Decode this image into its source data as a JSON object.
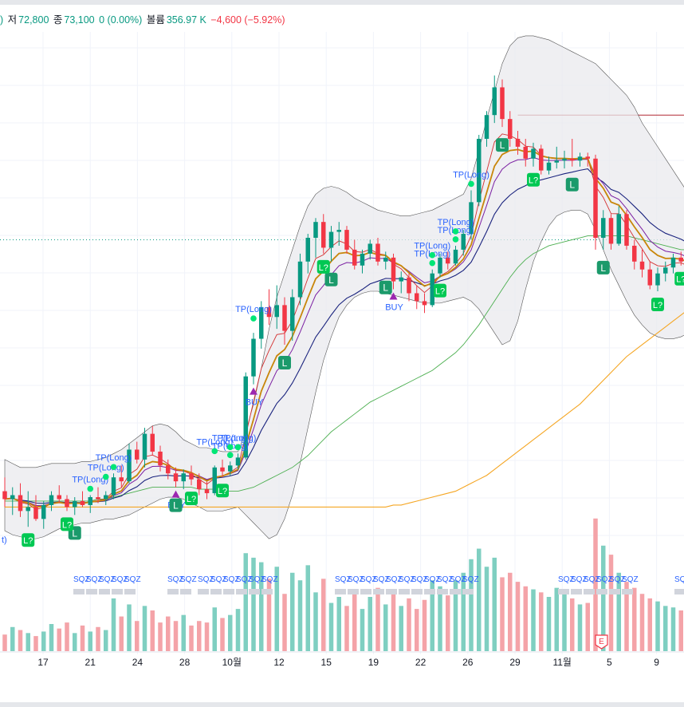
{
  "legend": {
    "low_label": "저",
    "low_value": "72,800",
    "close_label": "종",
    "close_value": "73,100",
    "change_value": "0 (0.00%)",
    "volume_label": "볼륨",
    "volume_value": "356.97 K",
    "day_change": "−4,600 (−5.92%)"
  },
  "colors": {
    "up": "#089981",
    "down": "#f23645",
    "up_volume": "#7fcfc1",
    "down_volume": "#f4a3a8",
    "signal_green": "#00e676",
    "signal_blue": "#2962ff",
    "buy_marker": "#9c27b0",
    "band_fill": "#e9eaed"
  },
  "chart_data": {
    "type": "candlestick",
    "x_tick_labels": [
      "17",
      "21",
      "24",
      "28",
      "10월",
      "12",
      "15",
      "19",
      "22",
      "26",
      "29",
      "11월",
      "5",
      "9"
    ],
    "candles": [
      {
        "o": 73700,
        "h": 74050,
        "l": 73300,
        "c": 73500
      },
      {
        "o": 73500,
        "h": 73800,
        "l": 73100,
        "c": 73600
      },
      {
        "o": 73600,
        "h": 73900,
        "l": 73050,
        "c": 73200
      },
      {
        "o": 73200,
        "h": 73700,
        "l": 72800,
        "c": 73300
      },
      {
        "o": 73300,
        "h": 73600,
        "l": 72950,
        "c": 73000
      },
      {
        "o": 73000,
        "h": 73450,
        "l": 72750,
        "c": 73350
      },
      {
        "o": 73350,
        "h": 73700,
        "l": 73200,
        "c": 73600
      },
      {
        "o": 73600,
        "h": 73850,
        "l": 73400,
        "c": 73500
      },
      {
        "o": 73500,
        "h": 73600,
        "l": 73200,
        "c": 73300
      },
      {
        "o": 73300,
        "h": 73550,
        "l": 73100,
        "c": 73450
      },
      {
        "o": 73450,
        "h": 73700,
        "l": 73300,
        "c": 73350
      },
      {
        "o": 73350,
        "h": 73600,
        "l": 73150,
        "c": 73550
      },
      {
        "o": 73550,
        "h": 73800,
        "l": 73400,
        "c": 73500
      },
      {
        "o": 73500,
        "h": 73700,
        "l": 73350,
        "c": 73600
      },
      {
        "o": 73600,
        "h": 74150,
        "l": 73500,
        "c": 74050
      },
      {
        "o": 74050,
        "h": 74350,
        "l": 73800,
        "c": 73950
      },
      {
        "o": 73950,
        "h": 74900,
        "l": 73900,
        "c": 74750
      },
      {
        "o": 74750,
        "h": 74950,
        "l": 74400,
        "c": 74500
      },
      {
        "o": 74500,
        "h": 75300,
        "l": 74300,
        "c": 75150
      },
      {
        "o": 75150,
        "h": 75350,
        "l": 74600,
        "c": 74700
      },
      {
        "o": 74700,
        "h": 74850,
        "l": 74200,
        "c": 74350
      },
      {
        "o": 74350,
        "h": 74500,
        "l": 74000,
        "c": 74150
      },
      {
        "o": 74150,
        "h": 74300,
        "l": 73800,
        "c": 73950
      },
      {
        "o": 73950,
        "h": 74250,
        "l": 73750,
        "c": 74150
      },
      {
        "o": 74150,
        "h": 74350,
        "l": 73850,
        "c": 74000
      },
      {
        "o": 74000,
        "h": 74150,
        "l": 73600,
        "c": 73750
      },
      {
        "o": 73750,
        "h": 73950,
        "l": 73500,
        "c": 73650
      },
      {
        "o": 73650,
        "h": 74350,
        "l": 73600,
        "c": 74300
      },
      {
        "o": 74300,
        "h": 74500,
        "l": 74050,
        "c": 74200
      },
      {
        "o": 74200,
        "h": 74450,
        "l": 74100,
        "c": 74350
      },
      {
        "o": 74350,
        "h": 74650,
        "l": 74250,
        "c": 74550
      },
      {
        "o": 74550,
        "h": 76700,
        "l": 74500,
        "c": 76600
      },
      {
        "o": 76600,
        "h": 77700,
        "l": 76400,
        "c": 77550
      },
      {
        "o": 77550,
        "h": 78500,
        "l": 77300,
        "c": 78350
      },
      {
        "o": 78350,
        "h": 78800,
        "l": 77900,
        "c": 78100
      },
      {
        "o": 78100,
        "h": 78900,
        "l": 77800,
        "c": 78400
      },
      {
        "o": 78400,
        "h": 78600,
        "l": 77400,
        "c": 77750
      },
      {
        "o": 77750,
        "h": 78800,
        "l": 77500,
        "c": 78600
      },
      {
        "o": 78600,
        "h": 79700,
        "l": 78400,
        "c": 79500
      },
      {
        "o": 79500,
        "h": 80200,
        "l": 79200,
        "c": 80100
      },
      {
        "o": 80100,
        "h": 80600,
        "l": 79600,
        "c": 80500
      },
      {
        "o": 80500,
        "h": 80700,
        "l": 79700,
        "c": 79850
      },
      {
        "o": 79850,
        "h": 80400,
        "l": 79500,
        "c": 80250
      },
      {
        "o": 80250,
        "h": 80500,
        "l": 79900,
        "c": 80300
      },
      {
        "o": 80300,
        "h": 80400,
        "l": 79700,
        "c": 79800
      },
      {
        "o": 79800,
        "h": 80050,
        "l": 79300,
        "c": 79400
      },
      {
        "o": 79400,
        "h": 79800,
        "l": 79200,
        "c": 79700
      },
      {
        "o": 79700,
        "h": 80050,
        "l": 79550,
        "c": 79950
      },
      {
        "o": 79950,
        "h": 80100,
        "l": 79400,
        "c": 79500
      },
      {
        "o": 79500,
        "h": 79750,
        "l": 79300,
        "c": 79600
      },
      {
        "o": 79600,
        "h": 79700,
        "l": 78800,
        "c": 79000
      },
      {
        "o": 79000,
        "h": 79250,
        "l": 78700,
        "c": 79100
      },
      {
        "o": 79100,
        "h": 79200,
        "l": 78500,
        "c": 78700
      },
      {
        "o": 78700,
        "h": 78900,
        "l": 78300,
        "c": 78500
      },
      {
        "o": 78500,
        "h": 78700,
        "l": 78200,
        "c": 78400
      },
      {
        "o": 78400,
        "h": 79300,
        "l": 78350,
        "c": 79200
      },
      {
        "o": 79200,
        "h": 79700,
        "l": 79100,
        "c": 79600
      },
      {
        "o": 79600,
        "h": 79750,
        "l": 79300,
        "c": 79450
      },
      {
        "o": 79450,
        "h": 79900,
        "l": 79400,
        "c": 79800
      },
      {
        "o": 79800,
        "h": 80300,
        "l": 79650,
        "c": 80200
      },
      {
        "o": 80200,
        "h": 81300,
        "l": 80050,
        "c": 81000
      },
      {
        "o": 81000,
        "h": 82700,
        "l": 80900,
        "c": 82600
      },
      {
        "o": 82600,
        "h": 83300,
        "l": 82400,
        "c": 83200
      },
      {
        "o": 83200,
        "h": 84200,
        "l": 83000,
        "c": 83900
      },
      {
        "o": 83900,
        "h": 84100,
        "l": 82900,
        "c": 83100
      },
      {
        "o": 83100,
        "h": 83300,
        "l": 82400,
        "c": 82600
      },
      {
        "o": 82600,
        "h": 82800,
        "l": 82200,
        "c": 82400
      },
      {
        "o": 82400,
        "h": 82600,
        "l": 81900,
        "c": 82100
      },
      {
        "o": 82100,
        "h": 82500,
        "l": 81900,
        "c": 82350
      },
      {
        "o": 82350,
        "h": 82450,
        "l": 81700,
        "c": 81800
      },
      {
        "o": 81800,
        "h": 82150,
        "l": 81700,
        "c": 82000
      },
      {
        "o": 82000,
        "h": 82400,
        "l": 81850,
        "c": 82050
      },
      {
        "o": 82050,
        "h": 82300,
        "l": 81850,
        "c": 82100
      },
      {
        "o": 82100,
        "h": 82600,
        "l": 81900,
        "c": 82050
      },
      {
        "o": 82050,
        "h": 82250,
        "l": 81900,
        "c": 82150
      },
      {
        "o": 82150,
        "h": 82250,
        "l": 81900,
        "c": 82100
      },
      {
        "o": 82100,
        "h": 82200,
        "l": 79800,
        "c": 80100
      },
      {
        "o": 80100,
        "h": 80800,
        "l": 79800,
        "c": 80600
      },
      {
        "o": 80600,
        "h": 80700,
        "l": 79800,
        "c": 79950
      },
      {
        "o": 79950,
        "h": 80900,
        "l": 79900,
        "c": 80700
      },
      {
        "o": 80700,
        "h": 80800,
        "l": 79800,
        "c": 79900
      },
      {
        "o": 79900,
        "h": 80050,
        "l": 79300,
        "c": 79500
      },
      {
        "o": 79500,
        "h": 79800,
        "l": 79100,
        "c": 79300
      },
      {
        "o": 79300,
        "h": 79500,
        "l": 78800,
        "c": 78900
      },
      {
        "o": 78900,
        "h": 79350,
        "l": 78750,
        "c": 79200
      },
      {
        "o": 79200,
        "h": 79500,
        "l": 79000,
        "c": 79350
      },
      {
        "o": 79350,
        "h": 79700,
        "l": 79200,
        "c": 79600
      },
      {
        "o": 79600,
        "h": 79750,
        "l": 79400,
        "c": 79500
      },
      {
        "o": 79500,
        "h": 79600,
        "l": 79100,
        "c": 79200
      }
    ],
    "volumes_k": [
      110,
      160,
      140,
      120,
      100,
      130,
      180,
      150,
      190,
      120,
      170,
      130,
      160,
      140,
      350,
      230,
      310,
      200,
      300,
      270,
      190,
      230,
      200,
      240,
      170,
      200,
      190,
      290,
      220,
      240,
      280,
      650,
      620,
      590,
      480,
      560,
      380,
      520,
      470,
      570,
      390,
      480,
      320,
      360,
      300,
      410,
      280,
      360,
      420,
      310,
      390,
      300,
      350,
      280,
      340,
      470,
      430,
      370,
      470,
      520,
      610,
      680,
      560,
      620,
      490,
      520,
      460,
      430,
      410,
      390,
      360,
      420,
      380,
      350,
      310,
      320,
      880,
      700,
      640,
      520,
      460,
      420,
      380,
      350,
      330,
      300,
      290,
      270,
      260
    ],
    "band_upper": [
      74500,
      74400,
      74300,
      74300,
      74300,
      74350,
      74400,
      74400,
      74400,
      74400,
      74450,
      74450,
      74500,
      74550,
      74650,
      74750,
      74900,
      75050,
      75200,
      75350,
      75400,
      75350,
      75200,
      75000,
      74900,
      74800,
      74800,
      74750,
      74700,
      74700,
      74700,
      75200,
      75900,
      76800,
      77800,
      78600,
      79200,
      79800,
      80400,
      80900,
      81200,
      81350,
      81400,
      81350,
      81250,
      81100,
      81000,
      80900,
      80800,
      80750,
      80700,
      80650,
      80650,
      80700,
      80750,
      80800,
      80900,
      81000,
      81100,
      81200,
      81600,
      82300,
      83100,
      83800,
      84500,
      84950,
      85150,
      85200,
      85200,
      85150,
      85100,
      85000,
      84900,
      84800,
      84700,
      84600,
      84500,
      84300,
      84100,
      83900,
      83700,
      83400,
      83000,
      82700,
      82400,
      82100,
      81800,
      81500,
      81200
    ],
    "band_lower": [
      72700,
      72600,
      72550,
      72500,
      72500,
      72550,
      72650,
      72750,
      72800,
      72850,
      72900,
      72900,
      72950,
      73000,
      73000,
      73050,
      73100,
      73200,
      73300,
      73400,
      73500,
      73550,
      73550,
      73500,
      73400,
      73300,
      73200,
      73200,
      73200,
      73250,
      73300,
      73100,
      72900,
      72700,
      72500,
      72600,
      73000,
      73600,
      74400,
      75300,
      76200,
      77000,
      77600,
      78100,
      78400,
      78600,
      78700,
      78750,
      78750,
      78700,
      78650,
      78600,
      78550,
      78500,
      78450,
      78450,
      78450,
      78500,
      78550,
      78600,
      78500,
      78300,
      78000,
      77700,
      77400,
      77500,
      78000,
      78800,
      79500,
      80000,
      80400,
      80650,
      80750,
      80800,
      80800,
      80700,
      80300,
      79800,
      79300,
      78900,
      78500,
      78150,
      77900,
      77700,
      77600,
      77550,
      77550,
      77600,
      77700
    ],
    "ma_slow": [
      73450,
      73450,
      73450,
      73450,
      73450,
      73450,
      73450,
      73450,
      73450,
      73450,
      73450,
      73450,
      73500,
      73500,
      73550,
      73600,
      73650,
      73700,
      73750,
      73800,
      73800,
      73800,
      73800,
      73800,
      73800,
      73750,
      73750,
      73750,
      73700,
      73700,
      73700,
      73750,
      73800,
      73900,
      74000,
      74100,
      74200,
      74300,
      74450,
      74600,
      74800,
      75000,
      75200,
      75350,
      75500,
      75650,
      75800,
      75950,
      76050,
      76150,
      76250,
      76350,
      76450,
      76550,
      76650,
      76750,
      76900,
      77050,
      77200,
      77400,
      77650,
      77900,
      78200,
      78500,
      78800,
      79100,
      79350,
      79550,
      79700,
      79800,
      79900,
      79950,
      80000,
      80050,
      80100,
      80150,
      80150,
      80150,
      80150,
      80150,
      80150,
      80100,
      80050,
      80000,
      79950,
      79900,
      79850,
      79800,
      79800
    ],
    "ma_long": [
      73300,
      73300,
      73300,
      73300,
      73300,
      73300,
      73300,
      73300,
      73300,
      73300,
      73300,
      73300,
      73300,
      73300,
      73300,
      73300,
      73300,
      73300,
      73300,
      73300,
      73300,
      73300,
      73300,
      73300,
      73300,
      73300,
      73300,
      73300,
      73300,
      73300,
      73300,
      73300,
      73300,
      73300,
      73300,
      73300,
      73300,
      73300,
      73300,
      73300,
      73300,
      73300,
      73300,
      73300,
      73300,
      73300,
      73300,
      73300,
      73300,
      73300,
      73350,
      73350,
      73400,
      73450,
      73500,
      73550,
      73600,
      73650,
      73700,
      73800,
      73900,
      74000,
      74100,
      74250,
      74400,
      74550,
      74700,
      74850,
      75000,
      75150,
      75300,
      75450,
      75600,
      75750,
      75900,
      76100,
      76300,
      76500,
      76700,
      76900,
      77100,
      77250,
      77400,
      77550,
      77700,
      77850,
      78000,
      78150,
      78300
    ],
    "tp_long_marker_value": 80050,
    "hline_value": 83200,
    "price_range": [
      72200,
      85300
    ],
    "annotations": {
      "tp_long": "TP(Long)",
      "tp_double": "TP(Long)",
      "buy": "BUY",
      "long": "L",
      "long_q": "L?",
      "sqz": "SQZ",
      "earnings": "E",
      "partial": "t)"
    },
    "tp_labels": [
      {
        "i": 16,
        "text": "TP(Long)"
      },
      {
        "i": 19,
        "text": "TP(Long)"
      },
      {
        "i": 21,
        "text": "TP(Long)"
      },
      {
        "i": 39,
        "text": "TP(Long)"
      },
      {
        "i": 42,
        "text": "TP(Long)"
      },
      {
        "i": 42,
        "text": "TP(Long)"
      },
      {
        "i": 43,
        "text": "TP(Long)"
      },
      {
        "i": 45,
        "text": "TP(Long)"
      },
      {
        "i": 78,
        "text": "TP(Long)"
      },
      {
        "i": 78,
        "text": "TP(Long)"
      },
      {
        "i": 82,
        "text": "TP(Long)"
      },
      {
        "i": 82,
        "text": "TP(Long)"
      },
      {
        "i": 85,
        "text": "TP(Long)"
      }
    ],
    "buy_signals": [
      32,
      46,
      71
    ],
    "long_signals": [
      13,
      31,
      51,
      60,
      70,
      90,
      103,
      109
    ],
    "long_q_signals": [
      5,
      12,
      35,
      40,
      58,
      80,
      96,
      118,
      123
    ]
  }
}
